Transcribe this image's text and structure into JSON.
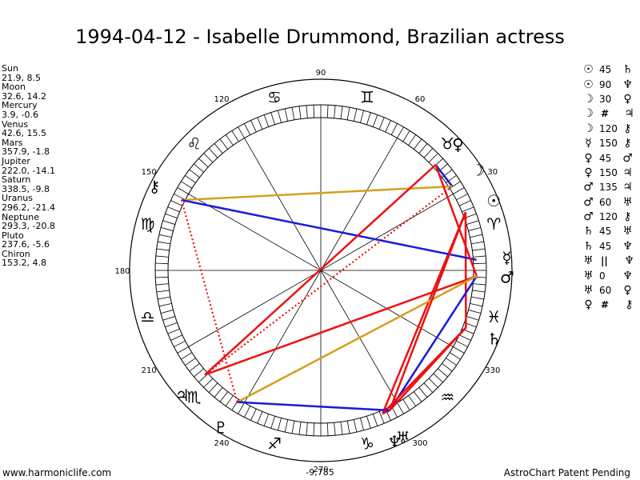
{
  "title": "1994-04-12 - Isabelle Drummond, Brazilian actress",
  "planets": [
    {
      "name": "Sun",
      "pos": "21.9, 8.5",
      "lon": 21.9,
      "glyph": "☉"
    },
    {
      "name": "Moon",
      "pos": "32.6, 14.2",
      "lon": 32.6,
      "glyph": "☽"
    },
    {
      "name": "Mercury",
      "pos": "3.9, -0.6",
      "lon": 3.9,
      "glyph": "☿"
    },
    {
      "name": "Venus",
      "pos": "42.6, 15.5",
      "lon": 42.6,
      "glyph": "♀"
    },
    {
      "name": "Mars",
      "pos": "357.9, -1.8",
      "lon": 357.9,
      "glyph": "♂"
    },
    {
      "name": "Jupiter",
      "pos": "222.0, -14.1",
      "lon": 222.0,
      "glyph": "♃"
    },
    {
      "name": "Saturn",
      "pos": "338.5, -9.8",
      "lon": 338.5,
      "glyph": "♄"
    },
    {
      "name": "Uranus",
      "pos": "296.2, -21.4",
      "lon": 296.2,
      "glyph": "♅"
    },
    {
      "name": "Neptune",
      "pos": "293.3, -20.8",
      "lon": 293.3,
      "glyph": "♆"
    },
    {
      "name": "Pluto",
      "pos": "237.6, -5.6",
      "lon": 237.6,
      "glyph": "♇"
    },
    {
      "name": "Chiron",
      "pos": "153.2, 4.8",
      "lon": 153.2,
      "glyph": "⚷"
    }
  ],
  "aspects": [
    {
      "g1": "☉",
      "v": "45",
      "g2": "♄"
    },
    {
      "g1": "☉",
      "v": "90",
      "g2": "♆"
    },
    {
      "g1": "☽",
      "v": "30",
      "g2": "♀"
    },
    {
      "g1": "☽",
      "v": "#",
      "g2": "♃"
    },
    {
      "g1": "☽",
      "v": "120",
      "g2": "⚷"
    },
    {
      "g1": "☿",
      "v": "150",
      "g2": "⚷"
    },
    {
      "g1": "♀",
      "v": "45",
      "g2": "♂"
    },
    {
      "g1": "♀",
      "v": "150",
      "g2": "♃"
    },
    {
      "g1": "♂",
      "v": "135",
      "g2": "♃"
    },
    {
      "g1": "♂",
      "v": "60",
      "g2": "♅"
    },
    {
      "g1": "♂",
      "v": "120",
      "g2": "⚷"
    },
    {
      "g1": "♄",
      "v": "45",
      "g2": "♅"
    },
    {
      "g1": "♄",
      "v": "45",
      "g2": "♆"
    },
    {
      "g1": "♅",
      "v": "||",
      "g2": "♆"
    },
    {
      "g1": "♅",
      "v": "0",
      "g2": "♆"
    },
    {
      "g1": "♅",
      "v": "60",
      "g2": "♀"
    },
    {
      "g1": "♀",
      "v": "#",
      "g2": "⚷"
    }
  ],
  "degree_labels": [
    {
      "deg": 0,
      "text": ""
    },
    {
      "deg": 30,
      "text": "30"
    },
    {
      "deg": 60,
      "text": "60"
    },
    {
      "deg": 90,
      "text": "90"
    },
    {
      "deg": 120,
      "text": "120"
    },
    {
      "deg": 150,
      "text": "150"
    },
    {
      "deg": 180,
      "text": "180"
    },
    {
      "deg": 210,
      "text": "210"
    },
    {
      "deg": 240,
      "text": "240"
    },
    {
      "deg": 270,
      "text": "270"
    },
    {
      "deg": 300,
      "text": "300"
    },
    {
      "deg": 330,
      "text": "330"
    }
  ],
  "zodiac_signs": [
    "♈",
    "♉",
    "♊",
    "♋",
    "♌",
    "♍",
    "♎",
    "♏",
    "♐",
    "♑",
    "♒",
    "♓"
  ],
  "chart_lines": [
    {
      "from": "Sun",
      "to": "Saturn",
      "color": "#ee1111",
      "style": "solid"
    },
    {
      "from": "Sun",
      "to": "Neptune",
      "color": "#ee1111",
      "style": "solid"
    },
    {
      "from": "Moon",
      "to": "Venus",
      "color": "#1a1add",
      "style": "solid"
    },
    {
      "from": "Moon",
      "to": "Jupiter",
      "color": "#ee1111",
      "style": "dotted"
    },
    {
      "from": "Moon",
      "to": "Chiron",
      "color": "#d4a020",
      "style": "solid"
    },
    {
      "from": "Mercury",
      "to": "Chiron",
      "color": "#1a1add",
      "style": "solid"
    },
    {
      "from": "Venus",
      "to": "Mars",
      "color": "#ee1111",
      "style": "solid"
    },
    {
      "from": "Venus",
      "to": "Jupiter",
      "color": "#ee1111",
      "style": "solid"
    },
    {
      "from": "Mars",
      "to": "Jupiter",
      "color": "#ee1111",
      "style": "solid"
    },
    {
      "from": "Mars",
      "to": "Uranus",
      "color": "#1a1add",
      "style": "solid"
    },
    {
      "from": "Mars",
      "to": "Pluto",
      "color": "#d4a020",
      "style": "solid"
    },
    {
      "from": "Saturn",
      "to": "Uranus",
      "color": "#ee1111",
      "style": "solid"
    },
    {
      "from": "Saturn",
      "to": "Neptune",
      "color": "#ee1111",
      "style": "solid"
    },
    {
      "from": "Uranus",
      "to": "Neptune",
      "color": "#ee1111",
      "style": "solid"
    },
    {
      "from": "Uranus",
      "to": "Pluto",
      "color": "#1a1add",
      "style": "solid"
    },
    {
      "from": "Pluto",
      "to": "Chiron",
      "color": "#ee1111",
      "style": "dotted"
    },
    {
      "from": "Sun",
      "to": "Uranus",
      "color": "#ee1111",
      "style": "solid"
    }
  ],
  "score": "-9,785",
  "footer_left": "www.harmoniclife.com",
  "footer_right": "AstroChart Patent Pending"
}
